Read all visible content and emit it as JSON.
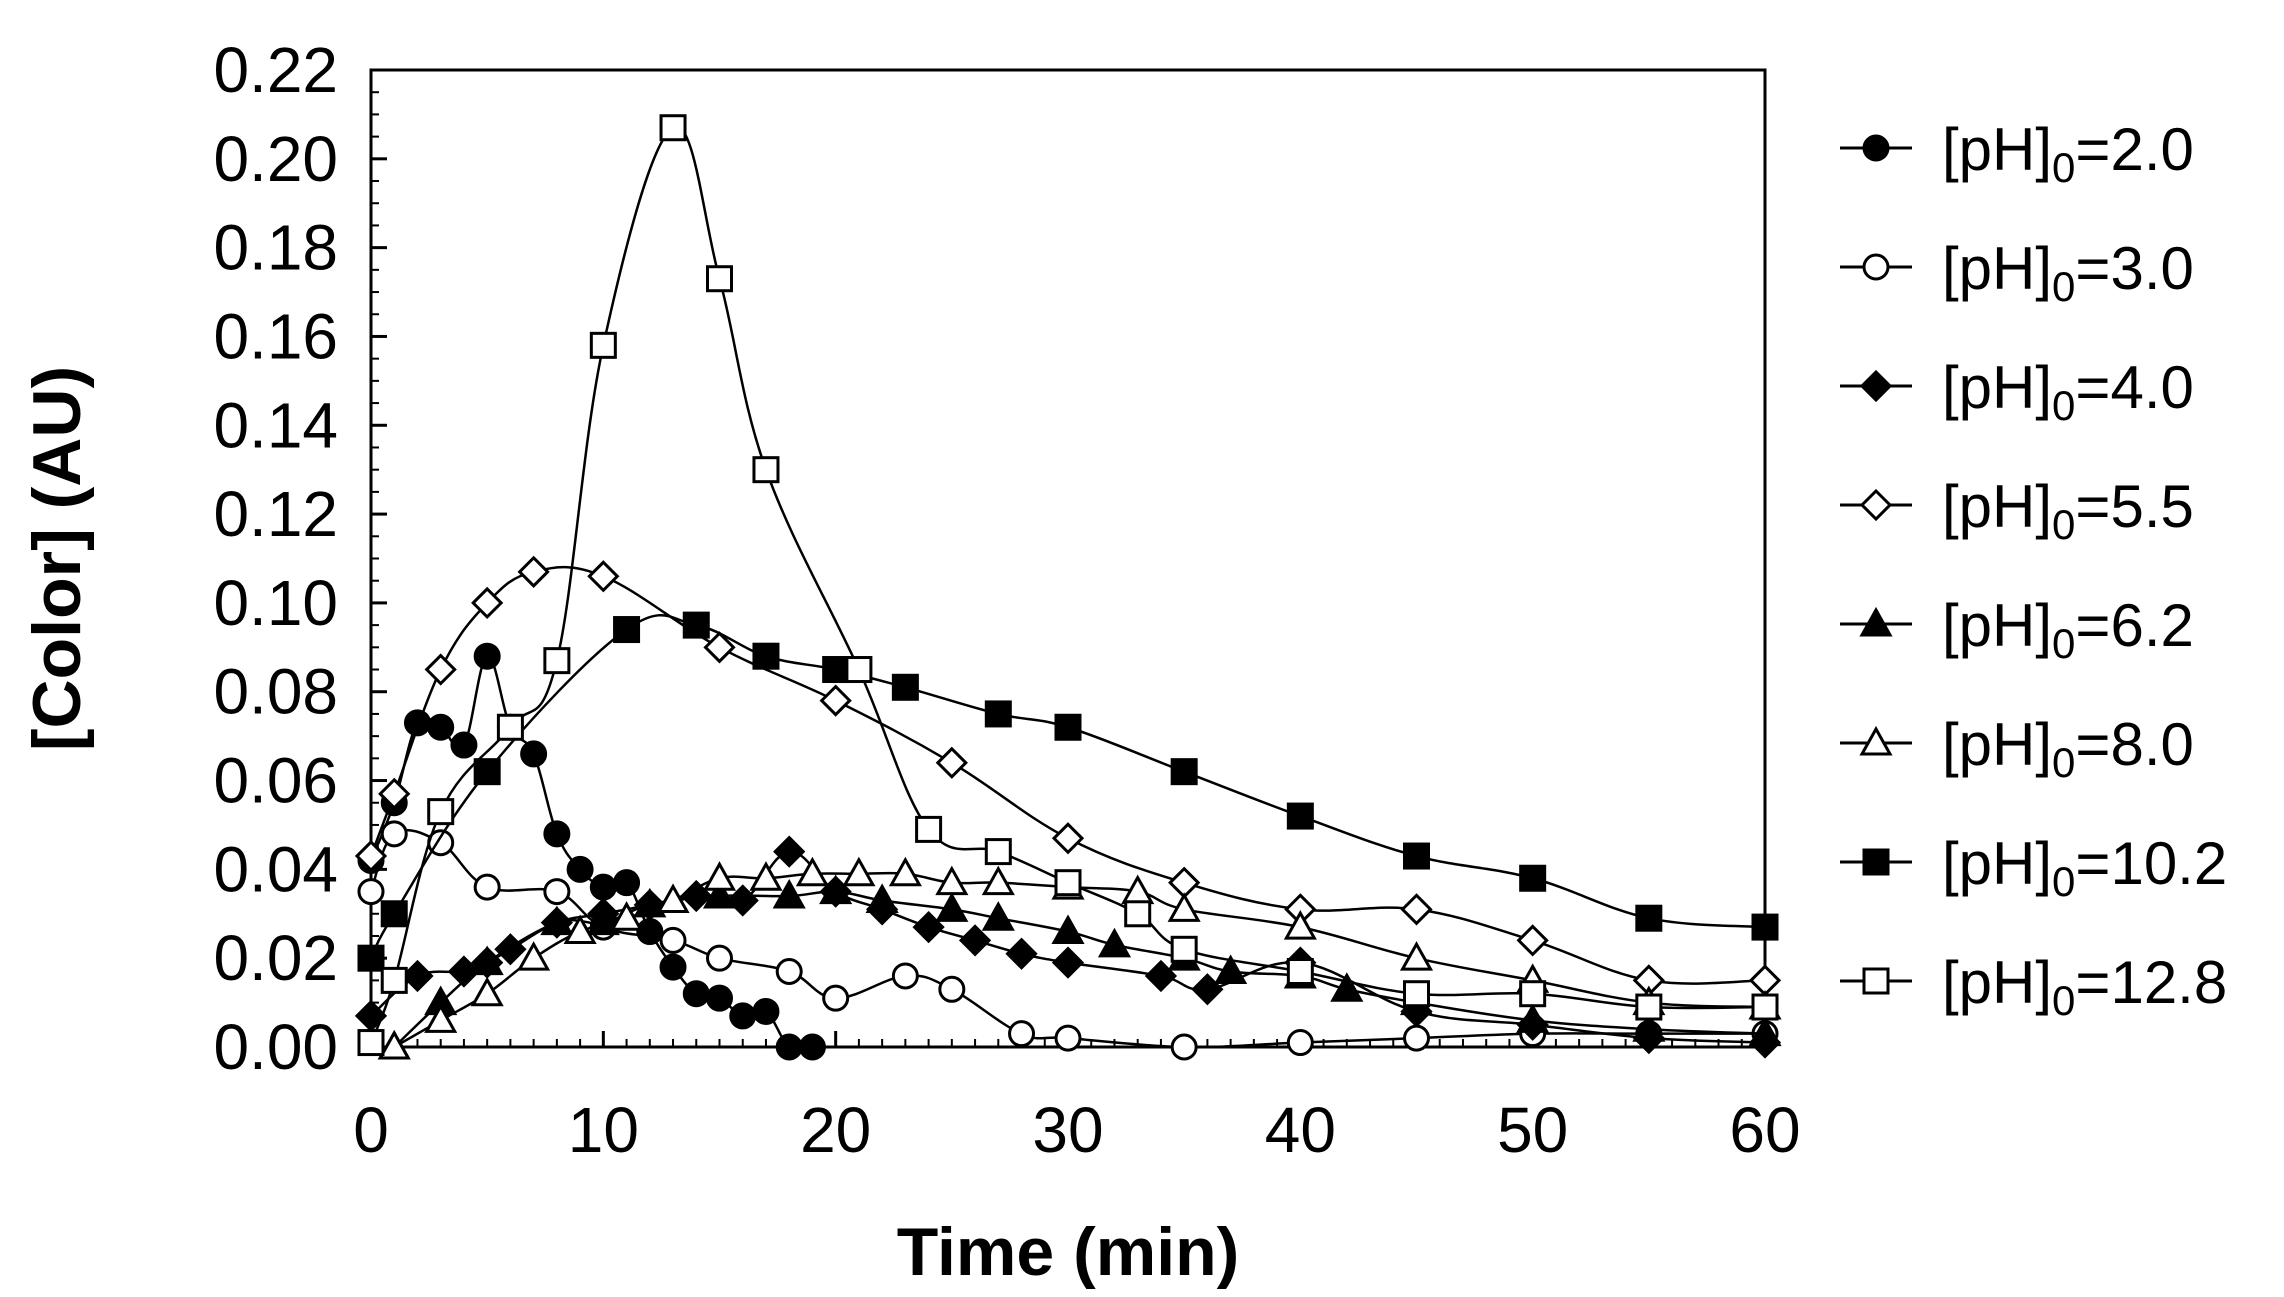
{
  "chart_data": {
    "type": "line",
    "title": "",
    "xlabel": "Time (min)",
    "ylabel": "[Color] (AU)",
    "xlim": [
      0,
      60
    ],
    "ylim": [
      0.0,
      0.22
    ],
    "xticks": [
      0,
      10,
      20,
      30,
      40,
      50,
      60
    ],
    "xtick_labels": [
      "0",
      "10",
      "20",
      "30",
      "40",
      "50",
      "60"
    ],
    "yticks": [
      0.0,
      0.02,
      0.04,
      0.06,
      0.08,
      0.1,
      0.12,
      0.14,
      0.16,
      0.18,
      0.2,
      0.22
    ],
    "ytick_labels": [
      "0.00",
      "0.02",
      "0.04",
      "0.06",
      "0.08",
      "0.10",
      "0.12",
      "0.14",
      "0.16",
      "0.18",
      "0.20",
      "0.22"
    ],
    "grid": false,
    "legend_position": "right",
    "series": [
      {
        "name": "[pH]0=2.0",
        "legend_prefix": "[pH]",
        "legend_sub": "0",
        "legend_suffix": "=2.0",
        "marker": "circle",
        "filled": true,
        "x": [
          0,
          1,
          2,
          3,
          4,
          5,
          6,
          7,
          8,
          9,
          10,
          11,
          12,
          13,
          14,
          15,
          16,
          17,
          18,
          19
        ],
        "y": [
          0.042,
          0.055,
          0.073,
          0.072,
          0.068,
          0.088,
          0.072,
          0.066,
          0.048,
          0.04,
          0.036,
          0.037,
          0.026,
          0.018,
          0.012,
          0.011,
          0.007,
          0.008,
          0.0,
          0.0
        ]
      },
      {
        "name": "[pH]0=3.0",
        "legend_prefix": "[pH]",
        "legend_sub": "0",
        "legend_suffix": "=3.0",
        "marker": "circle",
        "filled": false,
        "x": [
          0,
          1,
          3,
          5,
          8,
          10,
          13,
          15,
          18,
          20,
          23,
          25,
          28,
          30,
          35,
          40,
          45,
          50,
          55,
          60
        ],
        "y": [
          0.035,
          0.048,
          0.046,
          0.036,
          0.035,
          0.027,
          0.024,
          0.02,
          0.017,
          0.011,
          0.016,
          0.013,
          0.003,
          0.002,
          0.0,
          0.001,
          0.002,
          0.003,
          0.003,
          0.003
        ]
      },
      {
        "name": "[pH]0=4.0",
        "legend_prefix": "[pH]",
        "legend_sub": "0",
        "legend_suffix": "=4.0",
        "marker": "diamond",
        "filled": true,
        "x": [
          0,
          2,
          4,
          5,
          6,
          8,
          10,
          12,
          14,
          16,
          18,
          20,
          22,
          24,
          26,
          28,
          30,
          34,
          36,
          40,
          45,
          50,
          55,
          60
        ],
        "y": [
          0.007,
          0.016,
          0.017,
          0.019,
          0.022,
          0.028,
          0.03,
          0.032,
          0.034,
          0.033,
          0.044,
          0.035,
          0.031,
          0.027,
          0.024,
          0.021,
          0.019,
          0.016,
          0.013,
          0.019,
          0.008,
          0.005,
          0.002,
          0.001
        ]
      },
      {
        "name": "[pH]0=5.5",
        "legend_prefix": "[pH]",
        "legend_sub": "0",
        "legend_suffix": "=5.5",
        "marker": "diamond",
        "filled": false,
        "x": [
          0,
          1,
          3,
          5,
          7,
          10,
          15,
          20,
          25,
          30,
          35,
          40,
          45,
          50,
          55,
          60
        ],
        "y": [
          0.043,
          0.057,
          0.085,
          0.1,
          0.107,
          0.106,
          0.09,
          0.078,
          0.064,
          0.047,
          0.037,
          0.031,
          0.031,
          0.024,
          0.015,
          0.015
        ]
      },
      {
        "name": "[pH]0=6.2",
        "legend_prefix": "[pH]",
        "legend_sub": "0",
        "legend_suffix": "=6.2",
        "marker": "triangle",
        "filled": true,
        "x": [
          1,
          3,
          5,
          8,
          10,
          12,
          15,
          18,
          20,
          22,
          25,
          27,
          30,
          32,
          35,
          37,
          40,
          42,
          45,
          50,
          55,
          60
        ],
        "y": [
          0.0,
          0.01,
          0.019,
          0.028,
          0.028,
          0.032,
          0.034,
          0.034,
          0.035,
          0.033,
          0.031,
          0.029,
          0.026,
          0.023,
          0.02,
          0.017,
          0.016,
          0.013,
          0.01,
          0.006,
          0.004,
          0.003
        ]
      },
      {
        "name": "[pH]0=8.0",
        "legend_prefix": "[pH]",
        "legend_sub": "0",
        "legend_suffix": "=8.0",
        "marker": "triangle",
        "filled": false,
        "x": [
          1,
          3,
          5,
          7,
          9,
          11,
          13,
          15,
          17,
          19,
          21,
          23,
          25,
          27,
          30,
          33,
          35,
          40,
          45,
          50,
          55,
          60
        ],
        "y": [
          0.0,
          0.006,
          0.012,
          0.02,
          0.026,
          0.029,
          0.033,
          0.038,
          0.038,
          0.039,
          0.039,
          0.039,
          0.037,
          0.037,
          0.036,
          0.035,
          0.031,
          0.027,
          0.02,
          0.015,
          0.01,
          0.009
        ]
      },
      {
        "name": "[pH]0=10.2",
        "legend_prefix": "[pH]",
        "legend_sub": "0",
        "legend_suffix": "=10.2",
        "marker": "square",
        "filled": true,
        "x": [
          0,
          1,
          5,
          11,
          14,
          17,
          20,
          23,
          27,
          30,
          35,
          40,
          45,
          50,
          55,
          60
        ],
        "y": [
          0.02,
          0.03,
          0.062,
          0.094,
          0.095,
          0.088,
          0.085,
          0.081,
          0.075,
          0.072,
          0.062,
          0.052,
          0.043,
          0.038,
          0.029,
          0.027
        ]
      },
      {
        "name": "[pH]0=12.8",
        "legend_prefix": "[pH]",
        "legend_sub": "0",
        "legend_suffix": "=12.8",
        "marker": "square",
        "filled": false,
        "x": [
          0,
          1,
          3,
          6,
          8,
          10,
          13,
          15,
          17,
          21,
          24,
          27,
          30,
          33,
          35,
          40,
          45,
          50,
          55,
          60
        ],
        "y": [
          0.001,
          0.015,
          0.053,
          0.072,
          0.087,
          0.158,
          0.207,
          0.173,
          0.13,
          0.085,
          0.049,
          0.044,
          0.037,
          0.03,
          0.022,
          0.017,
          0.012,
          0.012,
          0.009,
          0.009
        ]
      }
    ]
  }
}
